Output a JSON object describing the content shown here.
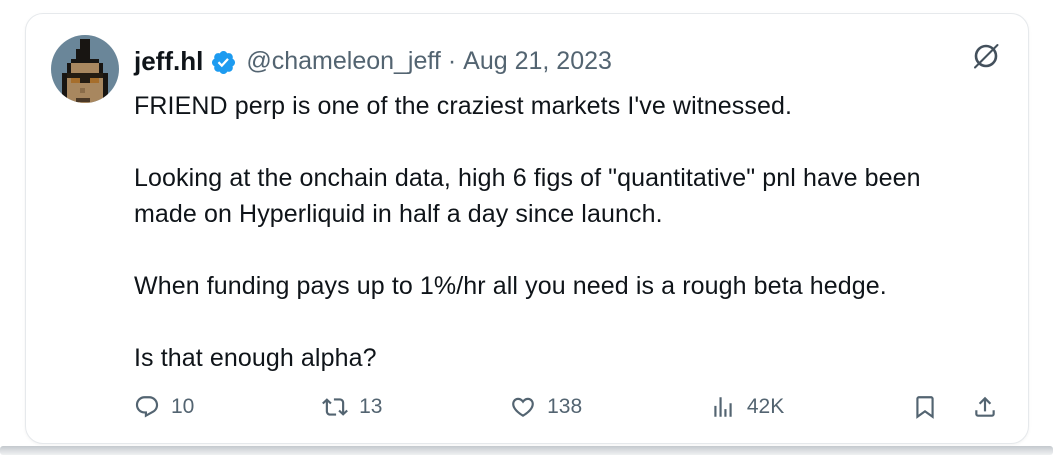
{
  "tweet": {
    "author": {
      "name": "jeff.hl",
      "handle": "@chameleon_jeff",
      "separator": "·",
      "date": "Aug 21, 2023"
    },
    "body": "FRIEND perp is one of the craziest markets I've witnessed.\n\nLooking at the onchain data, high 6 figs of \"quantitative\" pnl have been\nmade on Hyperliquid in half a day since launch.\n\nWhen funding pays up to 1%/hr all you need is a rough beta hedge.\n\nIs that enough alpha?",
    "stats": {
      "replies": "10",
      "reposts": "13",
      "likes": "138",
      "views": "42K"
    }
  },
  "colors": {
    "text": "#0f1419",
    "muted": "#536471",
    "verified_blue": "#1d9bf0",
    "avatar_bg": "#6a8699",
    "card_border": "#e6e9ec"
  },
  "avatar": {
    "palette": {
      "K": "#181512",
      "S": "#a8875f",
      "D": "#8a6c49",
      "L": "#a66e2c",
      "G": "#241c12",
      "M": "#4a3826"
    },
    "grid": [
      "......KK......",
      "......KK......",
      ".....KKK......",
      ".....KKK......",
      "....KKKKKK....",
      "...KSSSSSSK...",
      "...KSSSSSSK...",
      "..KGGGGGGGGK..",
      "..KSLLGGLLSK..",
      "..KSSSSSSSSK..",
      "..KSSSDSSSSK..",
      "..KSSSSSSSSK..",
      "..KSSMMMSSSK..",
      "..KSSSSSSSK...",
      "...KKSSSSK....",
      ".....KSSK....."
    ]
  }
}
